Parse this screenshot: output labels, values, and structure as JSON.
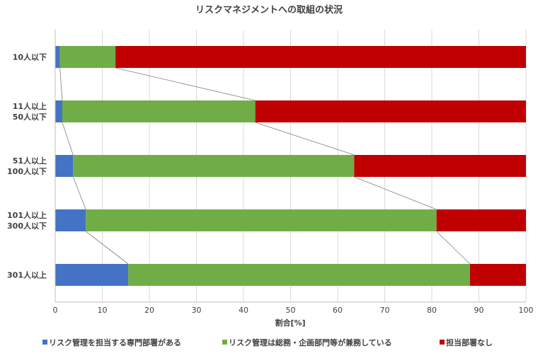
{
  "chart_data": {
    "type": "bar",
    "orientation": "horizontal",
    "stacked": true,
    "title": "リスクマネジメントへの取組の状況",
    "xlabel": "割合[%]",
    "ylabel": "",
    "xlim": [
      0,
      100
    ],
    "x_ticks": [
      0,
      10,
      20,
      30,
      40,
      50,
      60,
      70,
      80,
      90,
      100
    ],
    "grid": true,
    "legend_position": "bottom",
    "series_lines": true,
    "categories": [
      [
        "10人以下"
      ],
      [
        "11人以上",
        "50人以下"
      ],
      [
        "51人以上",
        "100人以下"
      ],
      [
        "101人以上",
        "300人以下"
      ],
      [
        "301人以上"
      ]
    ],
    "series": [
      {
        "name": "リスク管理を担当する専門部署がある",
        "color": "#4472C4",
        "values": [
          1.0,
          1.5,
          3.8,
          6.5,
          15.5
        ]
      },
      {
        "name": "リスク管理は総務・企画部門等が兼務している",
        "color": "#70AD47",
        "values": [
          11.8,
          41.0,
          59.7,
          74.5,
          72.6
        ]
      },
      {
        "name": "担当部署なし",
        "color": "#C00000",
        "values": [
          87.2,
          57.5,
          36.5,
          19.0,
          11.9
        ]
      }
    ]
  }
}
